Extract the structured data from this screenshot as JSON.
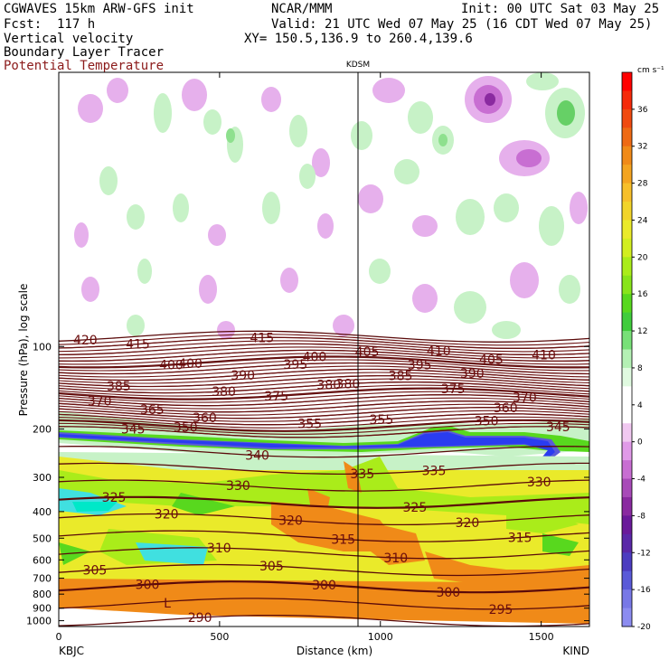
{
  "header": {
    "line1_left": "CGWAVES 15km ARW-GFS init",
    "line1_mid": "NCAR/MMM",
    "line1_right": "Init: 00 UTC Sat 03 May 25",
    "line2_left": "Fcst:  117 h",
    "line2_right": "Valid: 21 UTC Wed 07 May 25 (16 CDT Wed 07 May 25)",
    "line3_left": "Vertical velocity",
    "line3_right": "XY= 150.5,136.9 to 260.4,139.6",
    "line4_left": "Boundary Layer Tracer",
    "line5_left": "Potential Temperature",
    "line5_color": "#8b1a1a"
  },
  "chart_data": {
    "type": "heatmap",
    "title": "Vertical velocity / Boundary Layer Tracer / Potential Temperature cross section",
    "xlabel": "Distance (km)",
    "ylabel": "Pressure (hPa), log scale",
    "xlim": [
      0,
      1650
    ],
    "ylim_hpa": [
      1050,
      10
    ],
    "x_ticks": [
      0,
      500,
      1000,
      1500
    ],
    "y_ticks": [
      100,
      200,
      300,
      400,
      500,
      600,
      700,
      800,
      900,
      1000
    ],
    "left_station": "KBJC",
    "right_station": "KIND",
    "mid_station": "KDSM",
    "mid_station_km": 935,
    "colorbar": {
      "unit": "cm s⁻¹",
      "labels": [
        "36",
        "32",
        "28",
        "24",
        "20",
        "16",
        "12",
        "8",
        "4",
        "0",
        "-4",
        "-8",
        "-12",
        "-16",
        "-20"
      ],
      "colors": [
        "#ff0000",
        "#f52a0a",
        "#f04a10",
        "#ee6a14",
        "#f08a18",
        "#f4a420",
        "#f7bf2a",
        "#f2d42a",
        "#eaea2a",
        "#d2ee20",
        "#aaec1a",
        "#88e41a",
        "#58d81e",
        "#40cc3c",
        "#78e078",
        "#b4f0b4",
        "#e0fae0",
        "#ffffff",
        "#ffffff",
        "#f0c8f0",
        "#e09ae8",
        "#c86ed2",
        "#a84ab8",
        "#8a2aa0",
        "#6a1a9a",
        "#5a28a8",
        "#4c3cc0",
        "#5a5ad8",
        "#7878e6",
        "#8c8cf0"
      ]
    },
    "theta_isentropes_K": [
      290,
      295,
      300,
      305,
      310,
      315,
      320,
      325,
      330,
      335,
      340,
      345,
      350,
      355,
      360,
      365,
      370,
      375,
      380,
      385,
      390,
      395,
      400,
      405,
      410,
      415,
      420
    ],
    "theta_labels": [
      "420",
      "415",
      "410",
      "415",
      "400",
      "405",
      "400",
      "405",
      "410",
      "390",
      "395",
      "385",
      "395",
      "390",
      "400",
      "380",
      "370",
      "380",
      "385",
      "370",
      "375",
      "375",
      "365",
      "380",
      "360",
      "360",
      "355",
      "345",
      "340",
      "335",
      "345",
      "355",
      "350",
      "350",
      "335",
      "330",
      "330",
      "325",
      "325",
      "320",
      "320",
      "320",
      "315",
      "315",
      "310",
      "310",
      "305",
      "305",
      "300",
      "300",
      "300",
      "295",
      "290"
    ],
    "tracer_max_label": "L"
  }
}
